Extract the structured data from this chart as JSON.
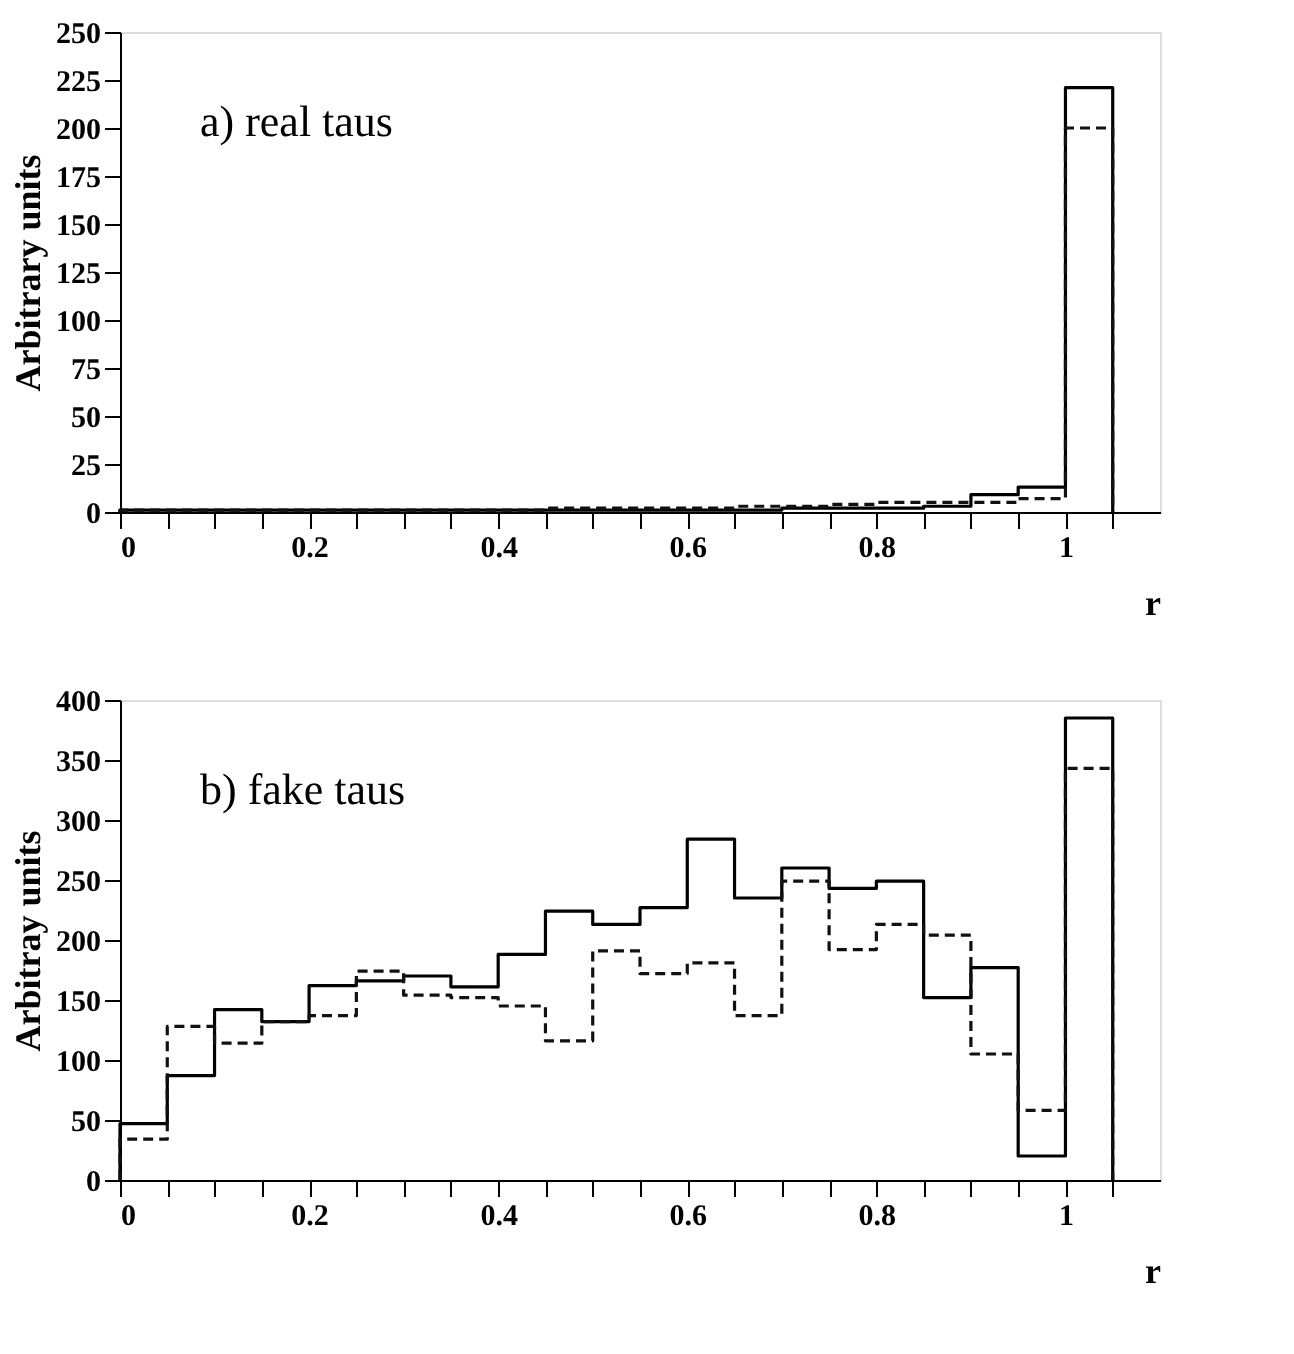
{
  "chart_data": [
    {
      "type": "histogram",
      "ylabel": "Arbitrary units",
      "xlabel": "r",
      "annotations": [
        {
          "text": "a)   real taus"
        }
      ],
      "bins": [
        0,
        0.05,
        0.1,
        0.15,
        0.2,
        0.25,
        0.3,
        0.35,
        0.4,
        0.45,
        0.5,
        0.55,
        0.6,
        0.65,
        0.7,
        0.75,
        0.8,
        0.85,
        0.9,
        0.95,
        1.0,
        1.05
      ],
      "series": [
        {
          "color": "#000000",
          "line_style": "solid",
          "values": [
            1,
            1,
            1,
            1,
            1,
            1,
            1,
            1,
            1,
            1,
            1,
            1,
            1,
            1,
            2,
            2,
            2,
            3,
            9,
            13,
            221
          ]
        },
        {
          "color": "#111111",
          "line_style": "dashed",
          "values": [
            1,
            1,
            1,
            1,
            1,
            1,
            1,
            1,
            1,
            2,
            2,
            2,
            2,
            3,
            3,
            4,
            5,
            5,
            5,
            7,
            200
          ]
        }
      ],
      "xlim": [
        0,
        1.1
      ],
      "xticks": [
        0,
        {
          "value": 0.05,
          "label": null
        },
        {
          "value": 0.1,
          "label": null
        },
        {
          "value": 0.15,
          "label": null
        },
        0.2,
        {
          "value": 0.25,
          "label": null
        },
        {
          "value": 0.3,
          "label": null
        },
        {
          "value": 0.35,
          "label": null
        },
        0.4,
        {
          "value": 0.45,
          "label": null
        },
        {
          "value": 0.5,
          "label": null
        },
        {
          "value": 0.55,
          "label": null
        },
        0.6,
        {
          "value": 0.65,
          "label": null
        },
        {
          "value": 0.7,
          "label": null
        },
        {
          "value": 0.75,
          "label": null
        },
        0.8,
        {
          "value": 0.85,
          "label": null
        },
        {
          "value": 0.9,
          "label": null
        },
        {
          "value": 0.95,
          "label": null
        },
        1,
        {
          "value": 1.05,
          "label": null
        }
      ],
      "ylim": [
        0,
        250
      ],
      "yticks": [
        0,
        25,
        50,
        75,
        100,
        125,
        150,
        175,
        200,
        225,
        250
      ],
      "grid": false,
      "legend": false
    },
    {
      "type": "histogram",
      "ylabel": "Arbitray units",
      "xlabel": "r",
      "annotations": [
        {
          "text": "b)   fake taus"
        }
      ],
      "bins": [
        0,
        0.05,
        0.1,
        0.15,
        0.2,
        0.25,
        0.3,
        0.35,
        0.4,
        0.45,
        0.5,
        0.55,
        0.6,
        0.65,
        0.7,
        0.75,
        0.8,
        0.85,
        0.9,
        0.95,
        1.0,
        1.05
      ],
      "series": [
        {
          "color": "#000000",
          "line_style": "solid",
          "values": [
            47,
            87,
            142,
            132,
            162,
            166,
            170,
            161,
            188,
            224,
            213,
            227,
            284,
            235,
            260,
            243,
            249,
            152,
            177,
            20,
            385
          ]
        },
        {
          "color": "#111111",
          "line_style": "dashed",
          "values": [
            34,
            128,
            114,
            132,
            137,
            174,
            154,
            152,
            145,
            116,
            191,
            172,
            181,
            137,
            249,
            192,
            213,
            204,
            105,
            58,
            343
          ]
        }
      ],
      "xlim": [
        0,
        1.1
      ],
      "xticks": [
        0,
        {
          "value": 0.05,
          "label": null
        },
        {
          "value": 0.1,
          "label": null
        },
        {
          "value": 0.15,
          "label": null
        },
        0.2,
        {
          "value": 0.25,
          "label": null
        },
        {
          "value": 0.3,
          "label": null
        },
        {
          "value": 0.35,
          "label": null
        },
        0.4,
        {
          "value": 0.45,
          "label": null
        },
        {
          "value": 0.5,
          "label": null
        },
        {
          "value": 0.55,
          "label": null
        },
        0.6,
        {
          "value": 0.65,
          "label": null
        },
        {
          "value": 0.7,
          "label": null
        },
        {
          "value": 0.75,
          "label": null
        },
        0.8,
        {
          "value": 0.85,
          "label": null
        },
        {
          "value": 0.9,
          "label": null
        },
        {
          "value": 0.95,
          "label": null
        },
        1,
        {
          "value": 1.05,
          "label": null
        }
      ],
      "ylim": [
        0,
        400
      ],
      "yticks": [
        0,
        50,
        100,
        150,
        200,
        250,
        300,
        350,
        400
      ],
      "grid": false,
      "legend": false
    }
  ]
}
